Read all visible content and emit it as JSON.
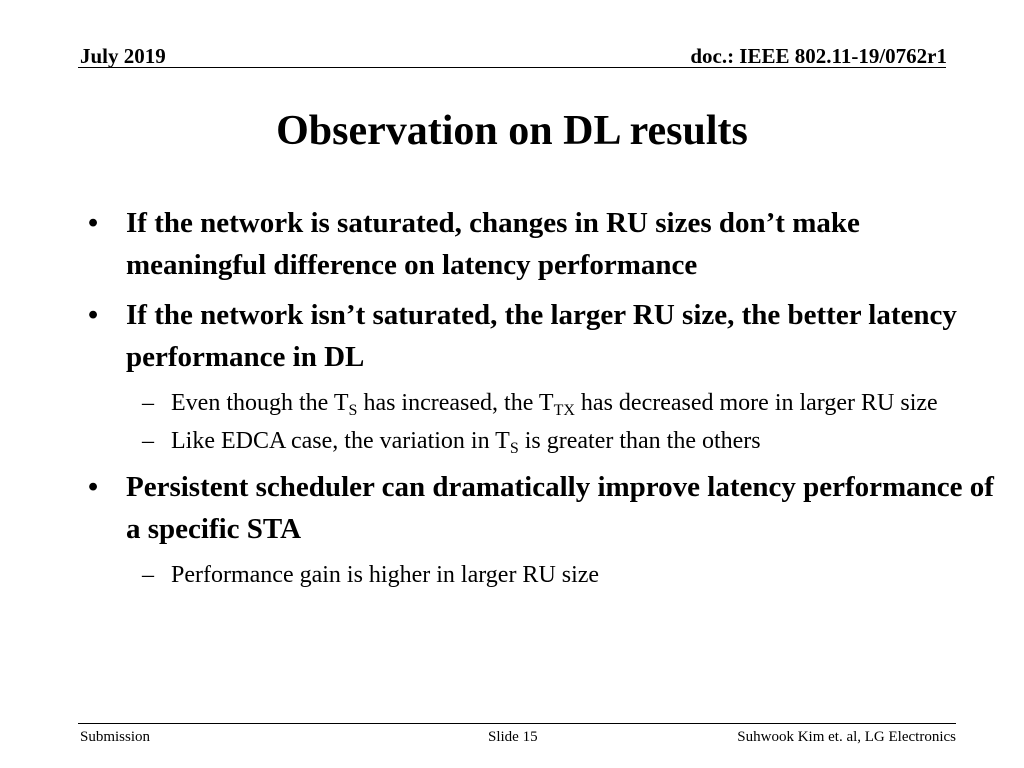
{
  "header": {
    "date": "July 2019",
    "doc_id": "doc.: IEEE 802.11-19/0762r1"
  },
  "title": "Observation on DL results",
  "bullets": [
    {
      "text": "If the network is saturated, changes in RU sizes don’t make meaningful difference on latency performance"
    },
    {
      "text": "If the network isn’t saturated, the larger RU size, the better latency performance in DL",
      "sub": {
        "s1": {
          "part1": "Even though the T",
          "sub1": "S",
          "part2": " has increased, the T",
          "sub2": "TX",
          "part3": " has decreased more in larger RU size"
        },
        "s2": {
          "part1": "Like EDCA case, the variation in T",
          "sub1": "S",
          "part2": " is greater than the others"
        }
      }
    },
    {
      "text": "Persistent scheduler can dramatically improve latency performance of a specific STA",
      "sub": {
        "s1": {
          "text": "Performance gain is higher in larger RU size"
        }
      }
    }
  ],
  "bullet_symbol": "•",
  "dash_symbol": "–",
  "footer": {
    "left": "Submission",
    "center": "Slide 15",
    "right": "Suhwook Kim et. al, LG Electronics"
  }
}
